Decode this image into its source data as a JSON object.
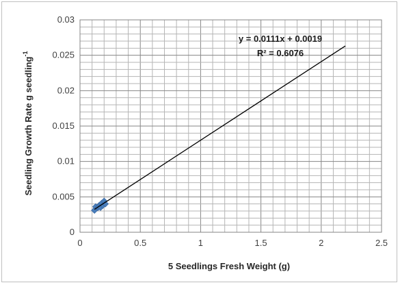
{
  "chart_data": {
    "type": "scatter",
    "xlabel": "5 Seedlings Fresh Weight (g)",
    "ylabel_main": "Seedling Growth Rate g seedling",
    "ylabel_sup": "-1",
    "xlim": [
      0,
      2.5
    ],
    "ylim": [
      0,
      0.03
    ],
    "x_ticks": [
      "0",
      "0.5",
      "1",
      "1.5",
      "2",
      "2.5"
    ],
    "y_ticks": [
      "0",
      "0.005",
      "0.01",
      "0.015",
      "0.02",
      "0.025",
      "0.03"
    ],
    "grid": true,
    "marker_color": "#4a7ebb",
    "points": [
      {
        "x": 0.12,
        "y": 0.0031
      },
      {
        "x": 0.13,
        "y": 0.0036
      },
      {
        "x": 0.15,
        "y": 0.0035
      },
      {
        "x": 0.16,
        "y": 0.0038
      },
      {
        "x": 0.17,
        "y": 0.0039
      },
      {
        "x": 0.17,
        "y": 0.0035
      },
      {
        "x": 0.18,
        "y": 0.0041
      },
      {
        "x": 0.19,
        "y": 0.0038
      },
      {
        "x": 0.2,
        "y": 0.0044
      },
      {
        "x": 0.21,
        "y": 0.004
      }
    ],
    "trendline": {
      "slope": 0.0111,
      "intercept": 0.0019,
      "x_range": [
        0.12,
        2.2
      ],
      "equation": "y = 0.0111x + 0.0019",
      "r_squared": "R² = 0.6076"
    }
  }
}
